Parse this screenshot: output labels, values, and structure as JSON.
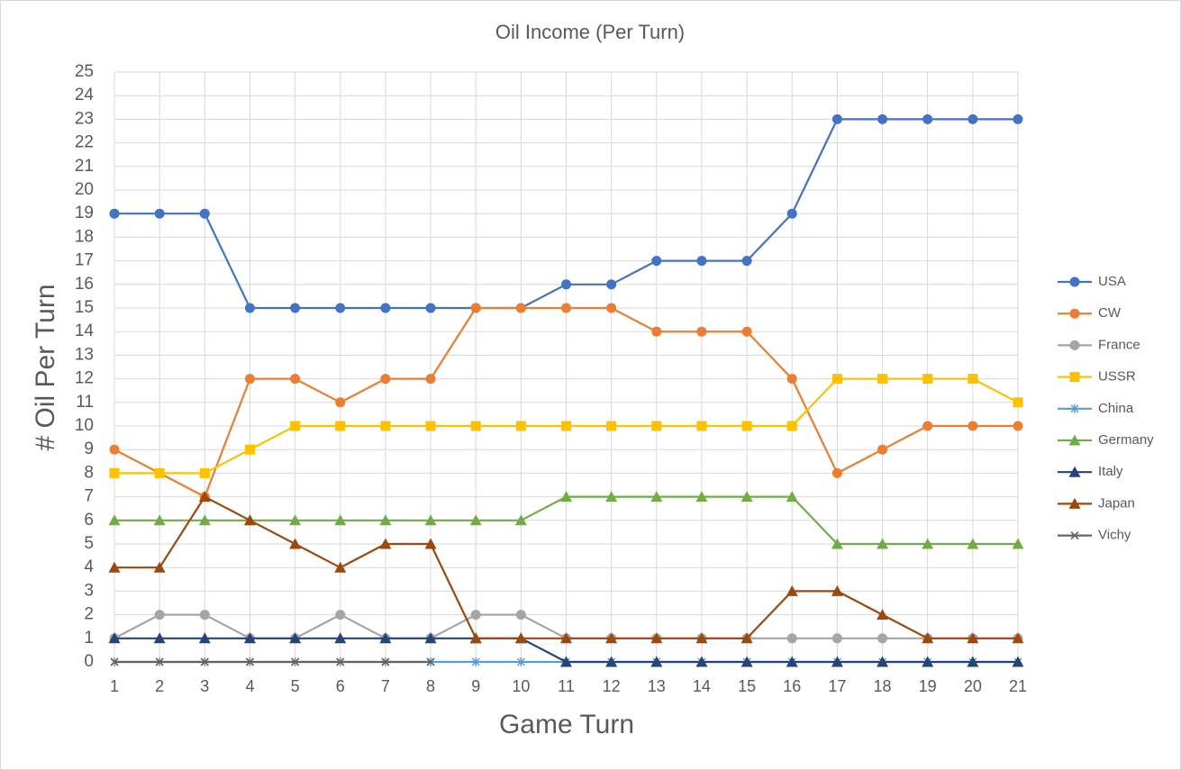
{
  "chart_data": {
    "type": "line",
    "title": "Oil Income (Per Turn)",
    "x_label": "Game Turn",
    "y_label": "# Oil Per Turn",
    "x": [
      1,
      2,
      3,
      4,
      5,
      6,
      7,
      8,
      9,
      10,
      11,
      12,
      13,
      14,
      15,
      16,
      17,
      18,
      19,
      20,
      21
    ],
    "xlim": [
      1,
      21
    ],
    "xticks": [
      1,
      2,
      3,
      4,
      5,
      6,
      7,
      8,
      9,
      10,
      11,
      12,
      13,
      14,
      15,
      16,
      17,
      18,
      19,
      20,
      21
    ],
    "ylim": [
      0,
      25
    ],
    "yticks": [
      0,
      1,
      2,
      3,
      4,
      5,
      6,
      7,
      8,
      9,
      10,
      11,
      12,
      13,
      14,
      15,
      16,
      17,
      18,
      19,
      20,
      21,
      22,
      23,
      24,
      25
    ],
    "grid": true,
    "legend": "right",
    "series": [
      {
        "name": "USA",
        "color": "#4472c4",
        "marker": "circle",
        "values": [
          19,
          19,
          19,
          15,
          15,
          15,
          15,
          15,
          15,
          15,
          16,
          16,
          17,
          17,
          17,
          19,
          23,
          23,
          23,
          23,
          23
        ]
      },
      {
        "name": "CW",
        "color": "#ed7d31",
        "marker": "circle",
        "values": [
          9,
          8,
          7,
          12,
          12,
          11,
          12,
          12,
          15,
          15,
          15,
          15,
          14,
          14,
          14,
          12,
          8,
          9,
          10,
          10,
          10
        ]
      },
      {
        "name": "France",
        "color": "#a5a5a5",
        "marker": "circle",
        "values": [
          1,
          2,
          2,
          1,
          1,
          2,
          1,
          1,
          2,
          2,
          1,
          1,
          1,
          1,
          1,
          1,
          1,
          1,
          1,
          1,
          1
        ]
      },
      {
        "name": "USSR",
        "color": "#ffc000",
        "marker": "square",
        "values": [
          8,
          8,
          8,
          9,
          10,
          10,
          10,
          10,
          10,
          10,
          10,
          10,
          10,
          10,
          10,
          10,
          12,
          12,
          12,
          12,
          11
        ]
      },
      {
        "name": "China",
        "color": "#5b9bd5",
        "marker": "star",
        "values": [
          0,
          0,
          0,
          0,
          0,
          0,
          0,
          0,
          0,
          0,
          0,
          0,
          0,
          0,
          0,
          0,
          0,
          0,
          0,
          0,
          0
        ]
      },
      {
        "name": "Germany",
        "color": "#70ad47",
        "marker": "triangle",
        "values": [
          6,
          6,
          6,
          6,
          6,
          6,
          6,
          6,
          6,
          6,
          7,
          7,
          7,
          7,
          7,
          7,
          5,
          5,
          5,
          5,
          5
        ]
      },
      {
        "name": "Italy",
        "color": "#264478",
        "marker": "triangle",
        "values": [
          1,
          1,
          1,
          1,
          1,
          1,
          1,
          1,
          1,
          1,
          0,
          0,
          0,
          0,
          0,
          0,
          0,
          0,
          0,
          0,
          0
        ]
      },
      {
        "name": "Japan",
        "color": "#9e480e",
        "marker": "triangle",
        "values": [
          4,
          4,
          7,
          6,
          5,
          4,
          5,
          5,
          1,
          1,
          1,
          1,
          1,
          1,
          1,
          3,
          3,
          2,
          1,
          1,
          1
        ]
      },
      {
        "name": "Vichy",
        "color": "#636363",
        "marker": "x",
        "values": [
          0,
          0,
          0,
          0,
          0,
          0,
          0,
          0,
          null,
          null,
          null,
          null,
          null,
          null,
          null,
          null,
          null,
          null,
          null,
          null,
          null
        ]
      }
    ]
  }
}
